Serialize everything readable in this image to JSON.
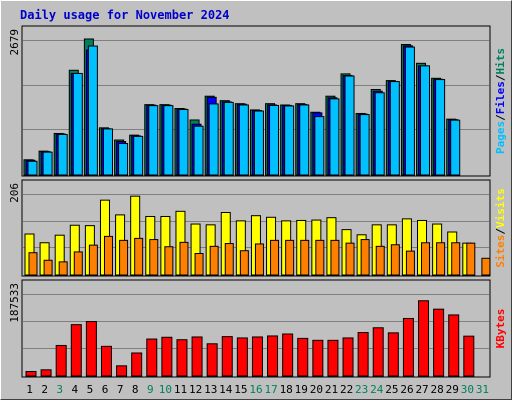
{
  "title": "Daily usage for November 2024",
  "colors": {
    "pages": "#00c0ff",
    "files": "#0000ff",
    "hits": "#00805c",
    "visits": "#ffff00",
    "sites": "#ff8000",
    "kbytes": "#ff0000",
    "weekend_day": "#00805c",
    "weekday_day": "#000000"
  },
  "chart_data": [
    {
      "type": "bar",
      "name": "hits-files-pages",
      "categories": [
        "1",
        "2",
        "3",
        "4",
        "5",
        "6",
        "7",
        "8",
        "9",
        "10",
        "11",
        "12",
        "13",
        "14",
        "15",
        "16",
        "17",
        "18",
        "19",
        "20",
        "21",
        "22",
        "23",
        "24",
        "25",
        "26",
        "27",
        "28",
        "29",
        "30",
        "31"
      ],
      "ylabel_top": "2679",
      "ymax": 2679,
      "legend": [
        "Pages",
        "Files",
        "Hits"
      ],
      "series": [
        {
          "name": "Hits",
          "values": [
            300,
            470,
            818,
            2063,
            2679,
            929,
            689,
            785,
            1386,
            1386,
            1310,
            1084,
            1552,
            1464,
            1405,
            1282,
            1405,
            1379,
            1405,
            1236,
            1552,
            1992,
            1212,
            1684,
            1860,
            2571,
            2200,
            1905,
            1100,
            0,
            0
          ]
        },
        {
          "name": "Files",
          "values": [
            290,
            460,
            808,
            2000,
            2460,
            910,
            660,
            770,
            1376,
            1376,
            1300,
            1000,
            1530,
            1440,
            1395,
            1270,
            1380,
            1370,
            1390,
            1224,
            1520,
            1960,
            1200,
            1650,
            1840,
            2545,
            2150,
            1885,
            1090,
            0,
            0
          ]
        },
        {
          "name": "Pages",
          "values": [
            270,
            450,
            798,
            2000,
            2540,
            908,
            620,
            760,
            1366,
            1366,
            1290,
            960,
            1400,
            1430,
            1380,
            1260,
            1370,
            1360,
            1380,
            1150,
            1500,
            1950,
            1190,
            1620,
            1840,
            2520,
            2150,
            1880,
            1080,
            0,
            0
          ]
        }
      ]
    },
    {
      "type": "bar",
      "name": "visits-sites",
      "categories": [
        "1",
        "2",
        "3",
        "4",
        "5",
        "6",
        "7",
        "8",
        "9",
        "10",
        "11",
        "12",
        "13",
        "14",
        "15",
        "16",
        "17",
        "18",
        "19",
        "20",
        "21",
        "22",
        "23",
        "24",
        "25",
        "26",
        "27",
        "28",
        "29",
        "30",
        "31"
      ],
      "ylabel_top": "206",
      "ymax": 206,
      "legend": [
        "Sites",
        "Visits"
      ],
      "series": [
        {
          "name": "Visits",
          "values": [
            103,
            81,
            100,
            125,
            124,
            188,
            151,
            198,
            147,
            147,
            160,
            128,
            126,
            157,
            136,
            149,
            145,
            136,
            137,
            138,
            144,
            114,
            101,
            126,
            126,
            141,
            137,
            128,
            108,
            80,
            0
          ]
        },
        {
          "name": "Sites",
          "values": [
            56,
            37,
            33,
            58,
            75,
            97,
            87,
            92,
            89,
            71,
            82,
            54,
            72,
            79,
            61,
            78,
            87,
            87,
            87,
            87,
            87,
            80,
            89,
            72,
            76,
            60,
            81,
            81,
            81,
            80,
            42
          ]
        }
      ]
    },
    {
      "type": "bar",
      "name": "kbytes",
      "categories": [
        "1",
        "2",
        "3",
        "4",
        "5",
        "6",
        "7",
        "8",
        "9",
        "10",
        "11",
        "12",
        "13",
        "14",
        "15",
        "16",
        "17",
        "18",
        "19",
        "20",
        "21",
        "22",
        "23",
        "24",
        "25",
        "26",
        "27",
        "28",
        "29",
        "30",
        "31"
      ],
      "ylabel_top": "187533",
      "ymax": 187533,
      "legend": [
        "KBytes"
      ],
      "series": [
        {
          "name": "KBytes",
          "values": [
            10200,
            14000,
            69000,
            116000,
            123000,
            67000,
            23000,
            52000,
            83500,
            87500,
            82000,
            88200,
            72800,
            89000,
            86000,
            88200,
            90500,
            94900,
            85000,
            80600,
            80600,
            86000,
            98200,
            109000,
            97500,
            130000,
            170000,
            151000,
            138000,
            90000,
            0
          ]
        }
      ]
    }
  ],
  "days": [
    {
      "label": "1",
      "weekend": false
    },
    {
      "label": "2",
      "weekend": false
    },
    {
      "label": "3",
      "weekend": true
    },
    {
      "label": "4",
      "weekend": false
    },
    {
      "label": "5",
      "weekend": false
    },
    {
      "label": "6",
      "weekend": false
    },
    {
      "label": "7",
      "weekend": false
    },
    {
      "label": "8",
      "weekend": false
    },
    {
      "label": "9",
      "weekend": true
    },
    {
      "label": "10",
      "weekend": true
    },
    {
      "label": "11",
      "weekend": false
    },
    {
      "label": "12",
      "weekend": false
    },
    {
      "label": "13",
      "weekend": false
    },
    {
      "label": "14",
      "weekend": false
    },
    {
      "label": "15",
      "weekend": false
    },
    {
      "label": "16",
      "weekend": true
    },
    {
      "label": "17",
      "weekend": true
    },
    {
      "label": "18",
      "weekend": false
    },
    {
      "label": "19",
      "weekend": false
    },
    {
      "label": "20",
      "weekend": false
    },
    {
      "label": "21",
      "weekend": false
    },
    {
      "label": "22",
      "weekend": false
    },
    {
      "label": "23",
      "weekend": true
    },
    {
      "label": "24",
      "weekend": true
    },
    {
      "label": "25",
      "weekend": false
    },
    {
      "label": "26",
      "weekend": false
    },
    {
      "label": "27",
      "weekend": false
    },
    {
      "label": "28",
      "weekend": false
    },
    {
      "label": "29",
      "weekend": false
    },
    {
      "label": "30",
      "weekend": true
    },
    {
      "label": "31",
      "weekend": true
    }
  ]
}
